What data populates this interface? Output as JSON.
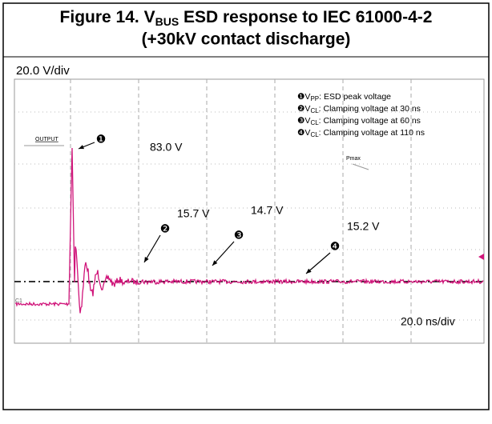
{
  "figure": {
    "title": {
      "prefix": "Figure 14. V",
      "subscript": "BUS",
      "suffix": " ESD response to IEC 61000-4-2",
      "line2": "(+30kV contact discharge)"
    },
    "scope": {
      "vertical_scale": "20.0 V/div",
      "horizontal_scale": "20.0 ns/div",
      "channel_label": "OUTPUT",
      "cursor_label": "Pmax",
      "channel_number": "C1",
      "legend": [
        {
          "marker": "❶",
          "symbol": "V",
          "subscript": "PP",
          "text": ": ESD peak voltage"
        },
        {
          "marker": "❷",
          "symbol": "V",
          "subscript": "CL",
          "text": ": Clamping voltage at 30 ns"
        },
        {
          "marker": "❸",
          "symbol": "V",
          "subscript": "CL",
          "text": ": Clamping voltage at 60 ns"
        },
        {
          "marker": "❹",
          "symbol": "V",
          "subscript": "CL",
          "text": ": Clamping voltage at 110 ns"
        }
      ],
      "annotations": [
        {
          "marker": "❶",
          "label": "83.0 V"
        },
        {
          "marker": "❷",
          "label": "15.7 V"
        },
        {
          "marker": "❸",
          "label": "14.7 V"
        },
        {
          "marker": "❹",
          "label": "15.2 V"
        }
      ]
    }
  }
}
